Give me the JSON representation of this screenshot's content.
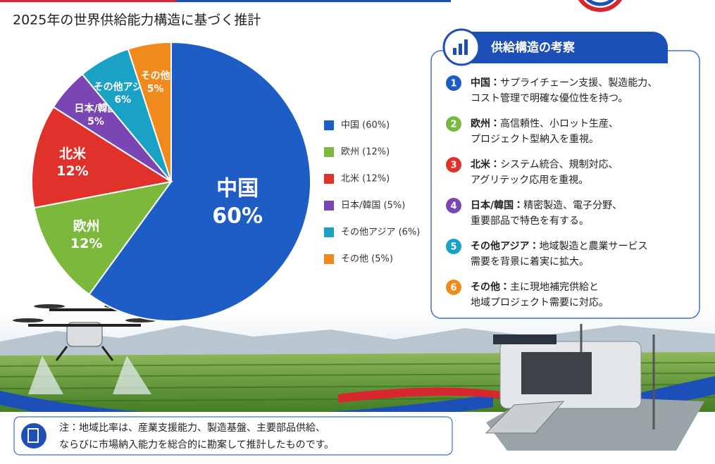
{
  "chart_data": {
    "type": "pie",
    "title": "2025年の世界供給能力構造に基づく推計",
    "categories": [
      "中国",
      "欧州",
      "北米",
      "日本/韓国",
      "その他アジア",
      "その他"
    ],
    "values": [
      60,
      12,
      12,
      5,
      6,
      5
    ],
    "value_labels": [
      "60%",
      "12%",
      "12%",
      "5%",
      "6%",
      "5%"
    ],
    "colors": [
      "#1e5cc6",
      "#7bb83c",
      "#e0322a",
      "#7a46b4",
      "#1aa2c6",
      "#f08a1c"
    ],
    "legend_labels": [
      "中国 (60%)",
      "欧州 (12%)",
      "北米 (12%)",
      "日本/韓国 (5%)",
      "その他アジア (6%)",
      "その他 (5%)"
    ]
  },
  "panel": {
    "title": "供給構造の考察",
    "items": [
      {
        "number": "1",
        "heading": "中国：",
        "lines": [
          "サプライチェーン支援、製造能力、",
          "コスト管理で明確な優位性を持つ。"
        ]
      },
      {
        "number": "2",
        "heading": "欧州：",
        "lines": [
          "高信頼性、小ロット生産、",
          "プロジェクト型納入を重視。"
        ]
      },
      {
        "number": "3",
        "heading": "北米：",
        "lines": [
          "システム統合、規制対応、",
          "アグリテック応用を重視。"
        ]
      },
      {
        "number": "4",
        "heading": "日本/韓国：",
        "lines": [
          "精密製造、電子分野、",
          "重要部品で特色を有する。"
        ]
      },
      {
        "number": "5",
        "heading": "その他アジア：",
        "lines": [
          "地域製造と農業サービス",
          "需要を背景に着実に拡大。"
        ]
      },
      {
        "number": "6",
        "heading": "その他：",
        "lines": [
          "主に現地補完供給と",
          "地域プロジェクト需要に対応。"
        ]
      }
    ]
  },
  "note": {
    "lines": [
      "注：地域比率は、産業支援能力、製造基盤、主要部品供給、",
      "ならびに市場納入能力を総合的に勘案して推計したものです。"
    ]
  }
}
